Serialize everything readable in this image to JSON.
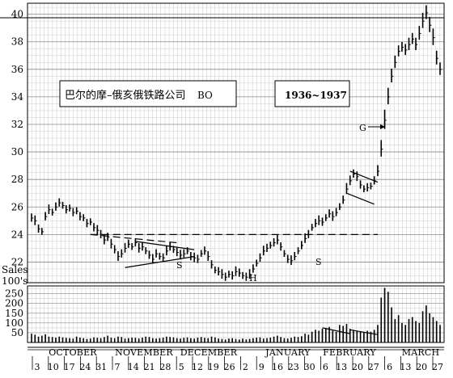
{
  "chart_data": {
    "type": "bar",
    "title": "巴尔的摩–俄亥俄铁路公司",
    "symbol": "BO",
    "period": "1936~1937",
    "price_axis": {
      "min": 20.5,
      "max": 40.8,
      "ticks": [
        22,
        24,
        26,
        28,
        30,
        32,
        34,
        36,
        38,
        40
      ]
    },
    "volume_axis": {
      "label_1": "Sales",
      "label_2": "100's",
      "ticks": [
        50,
        100,
        150,
        200,
        250
      ],
      "max": 290
    },
    "months": [
      "OCTOBER",
      "NOVEMBER",
      "DECEMBER",
      "JANUARY",
      "FEBRUARY",
      "MARCH"
    ],
    "days": [
      "3",
      "10",
      "17",
      "24",
      "31",
      "7",
      "14",
      "21",
      "28",
      "5",
      "12",
      "19",
      "26",
      "2",
      "9",
      "16",
      "23",
      "30",
      "6",
      "13",
      "20",
      "27",
      "6",
      "13",
      "20",
      "27"
    ],
    "annotations": {
      "shoulder_left": "S",
      "head": "H",
      "shoulder_right": "S",
      "g_marker": "G"
    },
    "price_series": {
      "name": "",
      "values": [
        25.2,
        25.0,
        24.4,
        24.2,
        25.3,
        25.8,
        25.6,
        26.0,
        26.3,
        26.1,
        25.8,
        25.9,
        25.6,
        25.7,
        25.3,
        25.2,
        24.8,
        24.9,
        24.5,
        24.3,
        24.0,
        23.6,
        23.8,
        23.3,
        22.9,
        22.4,
        22.6,
        23.0,
        23.3,
        23.1,
        23.4,
        23.0,
        23.1,
        22.8,
        22.5,
        22.2,
        22.6,
        22.4,
        22.3,
        22.8,
        23.1,
        22.9,
        22.7,
        22.5,
        22.6,
        22.8,
        22.4,
        22.3,
        22.2,
        22.6,
        22.8,
        22.4,
        21.8,
        21.4,
        21.3,
        21.1,
        20.9,
        21.1,
        21.0,
        21.3,
        21.2,
        21.0,
        20.9,
        21.1,
        21.5,
        21.9,
        22.3,
        22.8,
        23.0,
        23.2,
        23.4,
        23.6,
        23.1,
        22.6,
        22.2,
        22.1,
        22.4,
        22.8,
        23.2,
        23.7,
        24.0,
        24.5,
        24.8,
        25.0,
        24.9,
        25.2,
        25.5,
        25.3,
        25.6,
        26.0,
        26.5,
        27.3,
        27.9,
        28.4,
        28.2,
        27.6,
        27.3,
        27.4,
        27.5,
        27.9,
        28.6,
        30.2,
        32.3,
        34.0,
        35.5,
        36.5,
        37.3,
        37.6,
        37.4,
        37.8,
        38.2,
        37.8,
        38.6,
        39.5,
        40.1,
        39.2,
        38.3,
        36.8,
        36.0
      ],
      "ranges": [
        0.6,
        0.7,
        0.6,
        0.5,
        0.6,
        0.7,
        0.5,
        0.6,
        0.6,
        0.5,
        0.6,
        0.5,
        0.6,
        0.5,
        0.6,
        0.5,
        0.6,
        0.5,
        0.6,
        0.7,
        0.6,
        0.7,
        0.6,
        0.7,
        0.6,
        0.7,
        0.6,
        0.7,
        0.6,
        0.5,
        0.6,
        0.7,
        0.6,
        0.5,
        0.6,
        0.7,
        0.6,
        0.5,
        0.6,
        0.7,
        0.6,
        0.5,
        0.6,
        0.7,
        0.6,
        0.5,
        0.6,
        0.7,
        0.6,
        0.5,
        0.6,
        0.7,
        0.6,
        0.5,
        0.6,
        0.7,
        0.6,
        0.5,
        0.6,
        0.7,
        0.6,
        0.5,
        0.6,
        0.7,
        0.6,
        0.5,
        0.6,
        0.7,
        0.6,
        0.5,
        0.6,
        0.7,
        0.6,
        0.5,
        0.6,
        0.7,
        0.6,
        0.5,
        0.6,
        0.7,
        0.6,
        0.5,
        0.6,
        0.7,
        0.6,
        0.5,
        0.6,
        0.7,
        0.6,
        0.5,
        0.6,
        0.8,
        0.7,
        0.6,
        0.7,
        0.6,
        0.5,
        0.6,
        0.5,
        0.6,
        0.8,
        1.2,
        1.4,
        1.2,
        1.0,
        0.9,
        0.8,
        0.7,
        0.8,
        0.9,
        0.8,
        0.9,
        1.0,
        1.1,
        1.0,
        1.1,
        1.2,
        1.0,
        0.9
      ]
    },
    "volume_series": {
      "name": "",
      "values": [
        45,
        40,
        30,
        35,
        42,
        30,
        28,
        25,
        30,
        26,
        24,
        22,
        20,
        30,
        25,
        22,
        18,
        20,
        26,
        24,
        22,
        28,
        35,
        25,
        22,
        30,
        28,
        20,
        22,
        25,
        24,
        20,
        25,
        30,
        28,
        22,
        20,
        22,
        25,
        30,
        28,
        26,
        22,
        20,
        24,
        26,
        22,
        20,
        25,
        28,
        24,
        22,
        30,
        26,
        20,
        18,
        15,
        20,
        22,
        18,
        15,
        20,
        16,
        18,
        22,
        25,
        26,
        20,
        22,
        25,
        30,
        35,
        28,
        22,
        20,
        24,
        30,
        28,
        32,
        45,
        40,
        55,
        65,
        60,
        70,
        75,
        80,
        60,
        55,
        90,
        85,
        95,
        70,
        65,
        60,
        55,
        50,
        60,
        55,
        65,
        90,
        230,
        280,
        260,
        180,
        120,
        140,
        100,
        90,
        120,
        130,
        110,
        100,
        160,
        190,
        150,
        130,
        110,
        90
      ]
    },
    "trend_lines": "neckline, triangle and pennant boundaries drawn as straight lines",
    "grid": true
  }
}
